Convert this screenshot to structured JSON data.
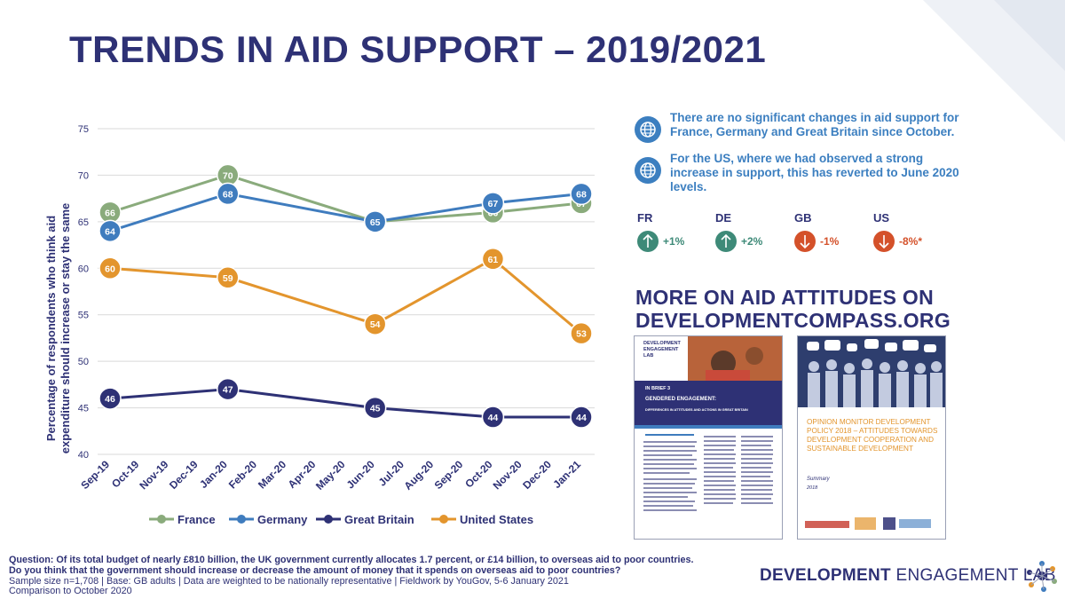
{
  "title": "TRENDS IN AID SUPPORT – 2019/2021",
  "chart_data": {
    "type": "line",
    "categories": [
      "Sep-19",
      "Oct-19",
      "Nov-19",
      "Dec-19",
      "Jan-20",
      "Feb-20",
      "Mar-20",
      "Apr-20",
      "May-20",
      "Jun-20",
      "Jul-20",
      "Aug-20",
      "Sep-20",
      "Oct-20",
      "Nov-20",
      "Dec-20",
      "Jan-21"
    ],
    "ylabel_line1": "Percentage of respondents who think aid",
    "ylabel_line2": "expenditure should increase or stay the same",
    "ylim": [
      40,
      75
    ],
    "yticks": [
      40,
      45,
      50,
      55,
      60,
      65,
      70,
      75
    ],
    "series": [
      {
        "name": "France",
        "color": "#8aab7c",
        "points": [
          {
            "x": "Sep-19",
            "y": 66
          },
          {
            "x": "Jan-20",
            "y": 70
          },
          {
            "x": "Jun-20",
            "y": 65
          },
          {
            "x": "Oct-20",
            "y": 66
          },
          {
            "x": "Jan-21",
            "y": 67
          }
        ],
        "labels": [
          "66",
          "70",
          "",
          "66",
          "67"
        ]
      },
      {
        "name": "Germany",
        "color": "#3f7cbe",
        "points": [
          {
            "x": "Sep-19",
            "y": 64
          },
          {
            "x": "Jan-20",
            "y": 68
          },
          {
            "x": "Jun-20",
            "y": 65
          },
          {
            "x": "Oct-20",
            "y": 67
          },
          {
            "x": "Jan-21",
            "y": 68
          }
        ],
        "labels": [
          "64",
          "68",
          "65",
          "67",
          "68"
        ]
      },
      {
        "name": "Great Britain",
        "color": "#2e3175",
        "points": [
          {
            "x": "Sep-19",
            "y": 46
          },
          {
            "x": "Jan-20",
            "y": 47
          },
          {
            "x": "Jun-20",
            "y": 45
          },
          {
            "x": "Oct-20",
            "y": 44
          },
          {
            "x": "Jan-21",
            "y": 44
          }
        ],
        "labels": [
          "46",
          "47",
          "45",
          "44",
          "44"
        ]
      },
      {
        "name": "United States",
        "color": "#e3952d",
        "points": [
          {
            "x": "Sep-19",
            "y": 60
          },
          {
            "x": "Jan-20",
            "y": 59
          },
          {
            "x": "Jun-20",
            "y": 54
          },
          {
            "x": "Oct-20",
            "y": 61
          },
          {
            "x": "Jan-21",
            "y": 53
          }
        ],
        "labels": [
          "60",
          "59",
          "54",
          "61",
          "53"
        ]
      }
    ],
    "legend_position": "bottom"
  },
  "notes": [
    "There are no significant changes in aid support for France, Germany and Great Britain since October.",
    "For the US, where we had observed a strong increase in support, this has reverted to June 2020 levels."
  ],
  "changes": [
    {
      "country": "FR",
      "value": "+1%",
      "direction": "up",
      "color": "#3e8a78"
    },
    {
      "country": "DE",
      "value": "+2%",
      "direction": "up",
      "color": "#3e8a78"
    },
    {
      "country": "GB",
      "value": "-1%",
      "direction": "down",
      "color": "#d4512a"
    },
    {
      "country": "US",
      "value": "-8%*",
      "direction": "down",
      "color": "#d4512a"
    }
  ],
  "more_line1": "MORE ON AID ATTITUDES ON",
  "more_line2": "DEVELOPMENTCOMPASS.ORG",
  "thumb1": {
    "logo_line1": "DEVELOPMENT",
    "logo_line2": "ENGAGEMENT",
    "logo_line3": "LAB",
    "brief": "IN BRIEF 3",
    "heading": "GENDERED ENGAGEMENT:",
    "subheading": "DIFFERENCES IN ATTITUDES AND ACTIONS IN GREAT BRITAIN"
  },
  "thumb2": {
    "heading": "OPINION MONITOR DEVELOPMENT POLICY 2018 – ATTITUDES TOWARDS DEVELOPMENT COOPERATION AND SUSTAINABLE DEVELOPMENT",
    "summary": "Summary",
    "year": "2018"
  },
  "question_line1": "Question: Of its total budget of nearly £810 billion, the UK government currently allocates 1.7 percent, or £14 billion, to overseas aid to poor countries.",
  "question_line2": "Do you think that the government should increase or decrease the amount of money that it spends on overseas aid to poor countries?",
  "sample_line": "Sample size n=1,708 | Base: GB adults | Data are weighted to be nationally representative | Fieldwork by YouGov, 5-6 January 2021",
  "comparison_line": "Comparison to October 2020",
  "logo_bold": "DEVELOPMENT",
  "logo_rest": " ENGAGEMENT LAB"
}
